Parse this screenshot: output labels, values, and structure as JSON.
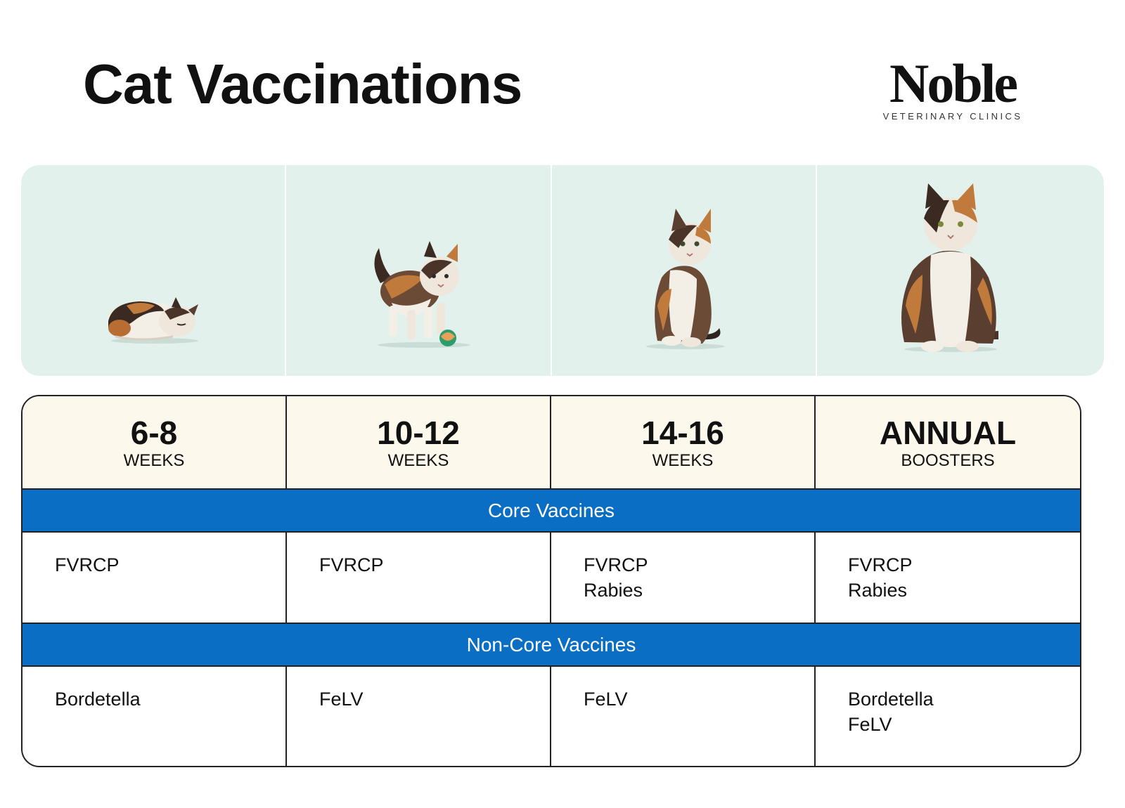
{
  "title": "Cat Vaccinations",
  "logo": {
    "name": "Noble",
    "subtitle": "VETERINARY CLINICS"
  },
  "colors": {
    "photo_background": "#e3f1ec",
    "header_background": "#fcf8ec",
    "section_band": "#0a6ec4",
    "border": "#222222"
  },
  "photos": [
    {
      "icon": "sleeping-kitten-icon"
    },
    {
      "icon": "playing-kitten-icon"
    },
    {
      "icon": "young-cat-icon"
    },
    {
      "icon": "adult-cat-icon"
    }
  ],
  "stages": [
    {
      "big": "6-8",
      "small": "WEEKS"
    },
    {
      "big": "10-12",
      "small": "WEEKS"
    },
    {
      "big": "14-16",
      "small": "WEEKS"
    },
    {
      "big": "ANNUAL",
      "small": "BOOSTERS"
    }
  ],
  "sections": [
    {
      "title": "Core Vaccines",
      "cells": [
        [
          "FVRCP"
        ],
        [
          "FVRCP"
        ],
        [
          "FVRCP",
          "Rabies"
        ],
        [
          "FVRCP",
          "Rabies"
        ]
      ]
    },
    {
      "title": "Non-Core Vaccines",
      "cells": [
        [
          "Bordetella"
        ],
        [
          "FeLV"
        ],
        [
          "FeLV"
        ],
        [
          "Bordetella",
          "FeLV"
        ]
      ]
    }
  ]
}
